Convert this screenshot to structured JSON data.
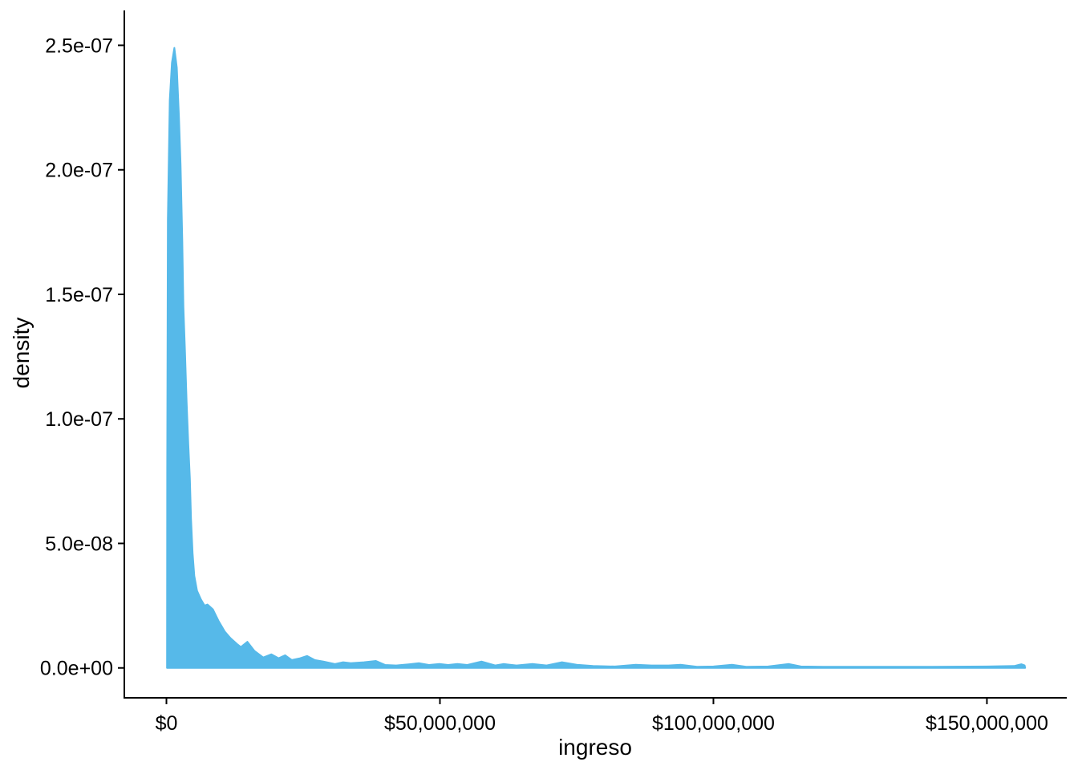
{
  "chart_data": {
    "type": "area",
    "title": "",
    "xlabel": "ingreso",
    "ylabel": "density",
    "legend": "none",
    "grid": "off",
    "fill_color": "#56B9E9",
    "line_color": "#56B9E9",
    "axis_color": "#000000",
    "text_color": "#000000",
    "background_color": "#FFFFFF",
    "xlim": [
      -7700000,
      164600000
    ],
    "ylim": [
      -1.2e-08,
      2.64e-07
    ],
    "x_ticks": [
      {
        "value": 0,
        "label": "$0"
      },
      {
        "value": 50000000,
        "label": "$50,000,000"
      },
      {
        "value": 100000000,
        "label": "$100,000,000"
      },
      {
        "value": 150000000,
        "label": "$150,000,000"
      }
    ],
    "y_ticks": [
      {
        "value": 0,
        "label": "0.0e+00"
      },
      {
        "value": 5e-08,
        "label": "5.0e-08"
      },
      {
        "value": 1e-07,
        "label": "1.0e-07"
      },
      {
        "value": 1.5e-07,
        "label": "1.5e-07"
      },
      {
        "value": 2e-07,
        "label": "2.0e-07"
      },
      {
        "value": 2.5e-07,
        "label": "2.5e-07"
      }
    ],
    "peak": {
      "x": 1450000,
      "y": 2.49e-07
    },
    "curve": [
      [
        100000,
        0
      ],
      [
        130000,
        8e-08
      ],
      [
        250000,
        1.8e-07
      ],
      [
        600000,
        2.28e-07
      ],
      [
        1000000,
        2.43e-07
      ],
      [
        1450000,
        2.49e-07
      ],
      [
        1900000,
        2.41e-07
      ],
      [
        2300000,
        2.21e-07
      ],
      [
        2600000,
        2.02e-07
      ],
      [
        2900000,
        1.72e-07
      ],
      [
        3100000,
        1.45e-07
      ],
      [
        3400000,
        1.27e-07
      ],
      [
        3700000,
        1.07e-07
      ],
      [
        4000000,
        9e-08
      ],
      [
        4300000,
        7.6e-08
      ],
      [
        4500000,
        6e-08
      ],
      [
        4800000,
        4.6e-08
      ],
      [
        5100000,
        3.7e-08
      ],
      [
        5600000,
        3.1e-08
      ],
      [
        6300000,
        2.75e-08
      ],
      [
        7000000,
        2.5e-08
      ],
      [
        7500000,
        2.55e-08
      ],
      [
        8500000,
        2.35e-08
      ],
      [
        9500000,
        1.9e-08
      ],
      [
        10700000,
        1.45e-08
      ],
      [
        11700000,
        1.2e-08
      ],
      [
        12900000,
        9.6e-09
      ],
      [
        13600000,
        8.4e-09
      ],
      [
        14800000,
        1.05e-08
      ],
      [
        16100000,
        6.8e-09
      ],
      [
        17700000,
        4.2e-09
      ],
      [
        19200000,
        5.5e-09
      ],
      [
        20500000,
        3.9e-09
      ],
      [
        21700000,
        5.1e-09
      ],
      [
        22900000,
        3.2e-09
      ],
      [
        24300000,
        3.8e-09
      ],
      [
        25700000,
        4.8e-09
      ],
      [
        27100000,
        3.2e-09
      ],
      [
        28700000,
        2.6e-09
      ],
      [
        30800000,
        1.6e-09
      ],
      [
        32300000,
        2.3e-09
      ],
      [
        33700000,
        1.9e-09
      ],
      [
        36100000,
        2.3e-09
      ],
      [
        38300000,
        2.8e-09
      ],
      [
        40000000,
        1.2e-09
      ],
      [
        42000000,
        1e-09
      ],
      [
        44000000,
        1.4e-09
      ],
      [
        46200000,
        1.9e-09
      ],
      [
        48000000,
        1.2e-09
      ],
      [
        49900000,
        1.6e-09
      ],
      [
        51500000,
        1.2e-09
      ],
      [
        53200000,
        1.6e-09
      ],
      [
        55000000,
        1.2e-09
      ],
      [
        57600000,
        2.6e-09
      ],
      [
        60100000,
        1e-09
      ],
      [
        61600000,
        1.6e-09
      ],
      [
        64000000,
        1e-09
      ],
      [
        66900000,
        1.6e-09
      ],
      [
        69500000,
        1e-09
      ],
      [
        72300000,
        2.3e-09
      ],
      [
        75000000,
        1.3e-09
      ],
      [
        78000000,
        8e-10
      ],
      [
        82000000,
        6e-10
      ],
      [
        85800000,
        1.3e-09
      ],
      [
        88700000,
        1e-09
      ],
      [
        91800000,
        1e-09
      ],
      [
        94000000,
        1.3e-09
      ],
      [
        97000000,
        5e-10
      ],
      [
        100000000,
        6e-10
      ],
      [
        103400000,
        1.3e-09
      ],
      [
        106000000,
        5e-10
      ],
      [
        110000000,
        6e-10
      ],
      [
        113800000,
        1.6e-09
      ],
      [
        116000000,
        6e-10
      ],
      [
        120000000,
        5e-10
      ],
      [
        130000000,
        5e-10
      ],
      [
        140000000,
        5e-10
      ],
      [
        150000000,
        6e-10
      ],
      [
        155000000,
        8e-10
      ],
      [
        156300000,
        1.5e-09
      ],
      [
        156900000,
        1e-09
      ],
      [
        157000000,
        0
      ]
    ]
  }
}
